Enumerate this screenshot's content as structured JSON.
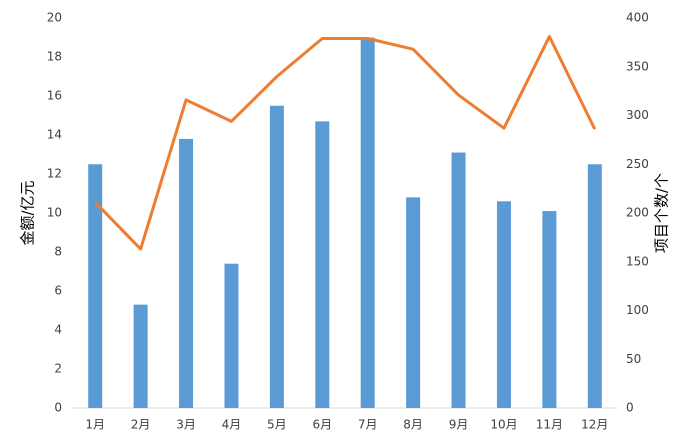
{
  "chart_data": {
    "type": "bar",
    "categories": [
      "1月",
      "2月",
      "3月",
      "4月",
      "5月",
      "6月",
      "7月",
      "8月",
      "9月",
      "10月",
      "11月",
      "12月"
    ],
    "series": [
      {
        "name": "金额",
        "type": "bar",
        "color": "#5b9bd5",
        "values": [
          12.5,
          5.3,
          13.8,
          7.4,
          15.5,
          14.7,
          19.0,
          10.8,
          13.1,
          10.6,
          10.1,
          12.5
        ]
      },
      {
        "name": "项目个数",
        "type": "line",
        "axis": "y2",
        "color": "#ed7d31",
        "values": [
          211,
          163,
          316,
          294,
          340,
          379,
          379,
          368,
          321,
          287,
          381,
          286
        ]
      }
    ],
    "ylabel": "金额/亿元",
    "y2label": "项目个数/个",
    "ylim": [
      0,
      20
    ],
    "yticks": [
      0,
      2,
      4,
      6,
      8,
      10,
      12,
      14,
      16,
      18,
      20
    ],
    "y2lim": [
      0,
      400
    ],
    "y2ticks": [
      0,
      50,
      100,
      150,
      200,
      250,
      300,
      350,
      400
    ],
    "grid": false
  }
}
